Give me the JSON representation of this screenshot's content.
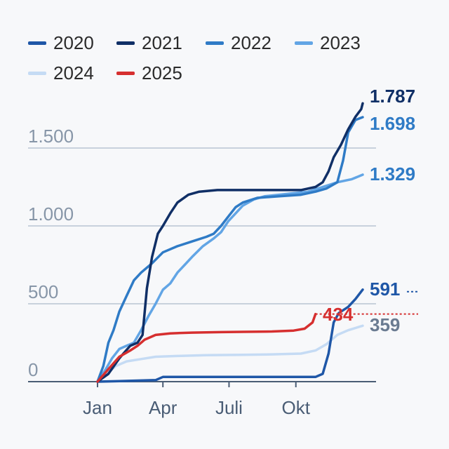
{
  "chart_data": {
    "type": "line",
    "title": "",
    "xlabel": "",
    "ylabel": "",
    "x_unit": "day_of_year",
    "xlim": [
      0,
      365
    ],
    "ylim": [
      0,
      1750
    ],
    "y_ticks": [
      {
        "value": 0,
        "label": "0"
      },
      {
        "value": 500,
        "label": "500"
      },
      {
        "value": 1000,
        "label": "1.000"
      },
      {
        "value": 1500,
        "label": "1.500"
      }
    ],
    "x_ticks": [
      {
        "value": 0,
        "label": "Jan"
      },
      {
        "value": 90,
        "label": "Apr"
      },
      {
        "value": 181,
        "label": "Juli"
      },
      {
        "value": 273,
        "label": "Okt"
      }
    ],
    "grid": true,
    "legend_position": "top",
    "series": [
      {
        "name": "2020",
        "color": "#1f57a7",
        "end_label": "591",
        "end_label_color": "#1f57a7",
        "points": [
          [
            0,
            0
          ],
          [
            30,
            3
          ],
          [
            80,
            10
          ],
          [
            90,
            30
          ],
          [
            150,
            30
          ],
          [
            220,
            30
          ],
          [
            300,
            30
          ],
          [
            310,
            50
          ],
          [
            318,
            180
          ],
          [
            325,
            380
          ],
          [
            332,
            440
          ],
          [
            345,
            480
          ],
          [
            355,
            530
          ],
          [
            365,
            591
          ]
        ]
      },
      {
        "name": "2021",
        "color": "#102f66",
        "end_label": "1.787",
        "end_label_color": "#102f66",
        "points": [
          [
            0,
            0
          ],
          [
            15,
            50
          ],
          [
            30,
            150
          ],
          [
            45,
            230
          ],
          [
            55,
            250
          ],
          [
            62,
            300
          ],
          [
            68,
            600
          ],
          [
            75,
            800
          ],
          [
            83,
            950
          ],
          [
            90,
            1000
          ],
          [
            100,
            1080
          ],
          [
            110,
            1150
          ],
          [
            125,
            1200
          ],
          [
            140,
            1220
          ],
          [
            165,
            1230
          ],
          [
            200,
            1230
          ],
          [
            240,
            1230
          ],
          [
            280,
            1230
          ],
          [
            300,
            1250
          ],
          [
            310,
            1280
          ],
          [
            318,
            1350
          ],
          [
            325,
            1440
          ],
          [
            335,
            1520
          ],
          [
            345,
            1620
          ],
          [
            355,
            1700
          ],
          [
            363,
            1750
          ],
          [
            365,
            1787
          ]
        ]
      },
      {
        "name": "2022",
        "color": "#2f7bc6",
        "end_label": "1.698",
        "end_label_color": "#2f7bc6",
        "points": [
          [
            0,
            0
          ],
          [
            8,
            100
          ],
          [
            15,
            250
          ],
          [
            22,
            330
          ],
          [
            30,
            450
          ],
          [
            40,
            550
          ],
          [
            50,
            650
          ],
          [
            60,
            700
          ],
          [
            75,
            760
          ],
          [
            90,
            830
          ],
          [
            110,
            870
          ],
          [
            130,
            900
          ],
          [
            150,
            930
          ],
          [
            160,
            950
          ],
          [
            170,
            1000
          ],
          [
            180,
            1060
          ],
          [
            190,
            1120
          ],
          [
            200,
            1150
          ],
          [
            220,
            1180
          ],
          [
            250,
            1190
          ],
          [
            280,
            1200
          ],
          [
            300,
            1220
          ],
          [
            315,
            1240
          ],
          [
            330,
            1280
          ],
          [
            338,
            1420
          ],
          [
            345,
            1600
          ],
          [
            355,
            1680
          ],
          [
            365,
            1698
          ]
        ]
      },
      {
        "name": "2023",
        "color": "#62a5e5",
        "end_label": "1.329",
        "end_label_color": "#2f7bc6",
        "points": [
          [
            0,
            0
          ],
          [
            10,
            70
          ],
          [
            20,
            150
          ],
          [
            30,
            210
          ],
          [
            40,
            230
          ],
          [
            50,
            250
          ],
          [
            60,
            330
          ],
          [
            70,
            420
          ],
          [
            80,
            500
          ],
          [
            90,
            590
          ],
          [
            100,
            630
          ],
          [
            110,
            700
          ],
          [
            120,
            750
          ],
          [
            130,
            800
          ],
          [
            145,
            870
          ],
          [
            160,
            920
          ],
          [
            170,
            960
          ],
          [
            180,
            1030
          ],
          [
            190,
            1080
          ],
          [
            200,
            1130
          ],
          [
            215,
            1170
          ],
          [
            230,
            1190
          ],
          [
            250,
            1200
          ],
          [
            270,
            1210
          ],
          [
            290,
            1220
          ],
          [
            310,
            1250
          ],
          [
            330,
            1280
          ],
          [
            350,
            1300
          ],
          [
            365,
            1329
          ]
        ]
      },
      {
        "name": "2024",
        "color": "#c5dbf4",
        "end_label": "359",
        "end_label_color": "#6a7b91",
        "points": [
          [
            0,
            0
          ],
          [
            10,
            40
          ],
          [
            25,
            100
          ],
          [
            40,
            130
          ],
          [
            60,
            145
          ],
          [
            80,
            160
          ],
          [
            110,
            165
          ],
          [
            150,
            170
          ],
          [
            200,
            172
          ],
          [
            240,
            175
          ],
          [
            280,
            180
          ],
          [
            300,
            200
          ],
          [
            315,
            240
          ],
          [
            330,
            300
          ],
          [
            345,
            330
          ],
          [
            365,
            359
          ]
        ]
      },
      {
        "name": "2025",
        "color": "#d62f2f",
        "end_label": "434",
        "end_label_color": "#d62f2f",
        "points": [
          [
            0,
            0
          ],
          [
            15,
            80
          ],
          [
            30,
            160
          ],
          [
            45,
            200
          ],
          [
            55,
            230
          ],
          [
            65,
            270
          ],
          [
            80,
            300
          ],
          [
            100,
            310
          ],
          [
            130,
            315
          ],
          [
            170,
            318
          ],
          [
            200,
            320
          ],
          [
            240,
            322
          ],
          [
            270,
            328
          ],
          [
            285,
            340
          ],
          [
            296,
            380
          ],
          [
            300,
            434
          ]
        ]
      }
    ]
  }
}
